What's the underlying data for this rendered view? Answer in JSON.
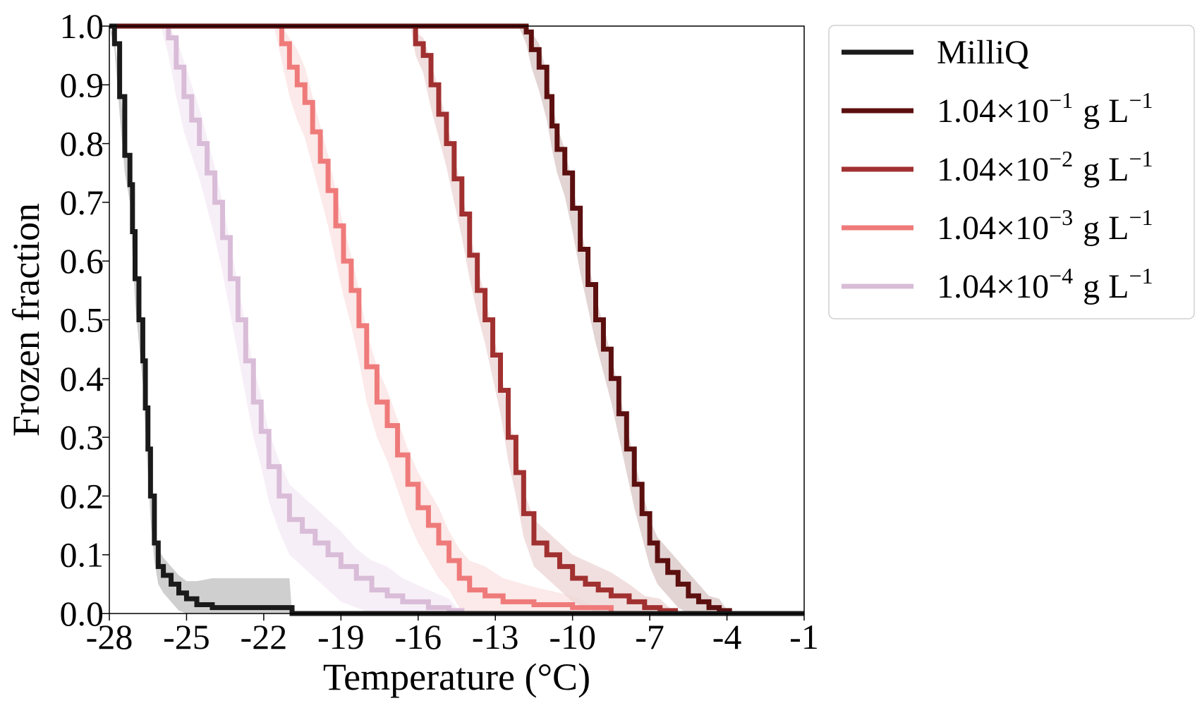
{
  "chart_data": {
    "type": "line",
    "xlabel": "Temperature (°C)",
    "ylabel": "Frozen fraction",
    "xlim": [
      -28,
      -1
    ],
    "ylim": [
      0.0,
      1.0
    ],
    "xticks": [
      "-28",
      "-25",
      "-22",
      "-19",
      "-16",
      "-13",
      "-10",
      "-7",
      "-4",
      "-1"
    ],
    "yticks": [
      "0.0",
      "0.1",
      "0.2",
      "0.3",
      "0.4",
      "0.5",
      "0.6",
      "0.7",
      "0.8",
      "0.9",
      "1.0"
    ],
    "grid": false,
    "legend_position": "outside-right-top",
    "series": [
      {
        "name": "MilliQ",
        "legend": {
          "prefix": "MilliQ",
          "exp": "",
          "unit": "",
          "unit_exp": ""
        },
        "color": "#1a1a1a",
        "band_color": "#bfbfbf",
        "points": [
          [
            -28,
            1.0
          ],
          [
            -27.8,
            0.97
          ],
          [
            -27.6,
            0.88
          ],
          [
            -27.4,
            0.78
          ],
          [
            -27.2,
            0.73
          ],
          [
            -27.1,
            0.65
          ],
          [
            -27.0,
            0.57
          ],
          [
            -26.85,
            0.5
          ],
          [
            -26.7,
            0.43
          ],
          [
            -26.6,
            0.35
          ],
          [
            -26.5,
            0.28
          ],
          [
            -26.4,
            0.2
          ],
          [
            -26.25,
            0.12
          ],
          [
            -26.1,
            0.08
          ],
          [
            -25.9,
            0.065
          ],
          [
            -25.6,
            0.05
          ],
          [
            -25.3,
            0.035
          ],
          [
            -25.0,
            0.025
          ],
          [
            -24.6,
            0.015
          ],
          [
            -24.0,
            0.01
          ],
          [
            -23.0,
            0.01
          ],
          [
            -21.0,
            0.01
          ],
          [
            -20.9,
            0.0
          ],
          [
            -1,
            0.0
          ]
        ],
        "band_halfwidth": [
          0,
          0.01,
          0.03,
          0.03,
          0.03,
          0.04,
          0.04,
          0.04,
          0.04,
          0.04,
          0.04,
          0.04,
          0.03,
          0.03,
          0.03,
          0.03,
          0.03,
          0.03,
          0.04,
          0.05,
          0.05,
          0.05,
          0,
          0
        ]
      },
      {
        "name": "1.04×10−1 g L−1",
        "legend": {
          "prefix": "1.04×10",
          "exp": "−1",
          "unit": "g L",
          "unit_exp": "−1"
        },
        "color": "#5c0f0f",
        "band_color": "#d9c6c6",
        "points": [
          [
            -28,
            1.0
          ],
          [
            -12.1,
            1.0
          ],
          [
            -11.8,
            0.99
          ],
          [
            -11.6,
            0.96
          ],
          [
            -11.3,
            0.93
          ],
          [
            -11.0,
            0.88
          ],
          [
            -10.8,
            0.83
          ],
          [
            -10.6,
            0.79
          ],
          [
            -10.3,
            0.75
          ],
          [
            -10.0,
            0.69
          ],
          [
            -9.7,
            0.62
          ],
          [
            -9.4,
            0.56
          ],
          [
            -9.1,
            0.5
          ],
          [
            -8.8,
            0.45
          ],
          [
            -8.5,
            0.4
          ],
          [
            -8.2,
            0.34
          ],
          [
            -7.9,
            0.28
          ],
          [
            -7.6,
            0.22
          ],
          [
            -7.3,
            0.17
          ],
          [
            -7.0,
            0.12
          ],
          [
            -6.7,
            0.09
          ],
          [
            -6.3,
            0.07
          ],
          [
            -5.9,
            0.05
          ],
          [
            -5.5,
            0.03
          ],
          [
            -5.1,
            0.02
          ],
          [
            -4.7,
            0.01
          ],
          [
            -4.3,
            0.005
          ],
          [
            -3.9,
            0.0
          ],
          [
            -1,
            0.0
          ]
        ],
        "band_halfwidth": [
          0,
          0,
          0.02,
          0.03,
          0.04,
          0.04,
          0.04,
          0.04,
          0.04,
          0.04,
          0.04,
          0.04,
          0.04,
          0.04,
          0.04,
          0.04,
          0.04,
          0.04,
          0.04,
          0.04,
          0.04,
          0.04,
          0.04,
          0.04,
          0.03,
          0.02,
          0.02,
          0,
          0
        ]
      },
      {
        "name": "1.04×10−2 g L−1",
        "legend": {
          "prefix": "1.04×10",
          "exp": "−2",
          "unit": "g L",
          "unit_exp": "−1"
        },
        "color": "#a13030",
        "band_color": "#ecd4d4",
        "points": [
          [
            -28,
            1.0
          ],
          [
            -16.3,
            1.0
          ],
          [
            -16.1,
            0.97
          ],
          [
            -15.8,
            0.95
          ],
          [
            -15.5,
            0.9
          ],
          [
            -15.2,
            0.85
          ],
          [
            -14.9,
            0.8
          ],
          [
            -14.6,
            0.74
          ],
          [
            -14.3,
            0.68
          ],
          [
            -14.0,
            0.61
          ],
          [
            -13.7,
            0.55
          ],
          [
            -13.4,
            0.5
          ],
          [
            -13.1,
            0.44
          ],
          [
            -12.8,
            0.38
          ],
          [
            -12.5,
            0.3
          ],
          [
            -12.2,
            0.24
          ],
          [
            -11.9,
            0.17
          ],
          [
            -11.5,
            0.12
          ],
          [
            -11.0,
            0.1
          ],
          [
            -10.5,
            0.08
          ],
          [
            -10.0,
            0.06
          ],
          [
            -9.5,
            0.05
          ],
          [
            -9.0,
            0.04
          ],
          [
            -8.5,
            0.03
          ],
          [
            -7.8,
            0.02
          ],
          [
            -7.2,
            0.01
          ],
          [
            -6.6,
            0.005
          ],
          [
            -6.0,
            0.0
          ],
          [
            -1,
            0.0
          ]
        ],
        "band_halfwidth": [
          0,
          0,
          0.02,
          0.03,
          0.04,
          0.04,
          0.04,
          0.04,
          0.04,
          0.04,
          0.04,
          0.04,
          0.04,
          0.04,
          0.04,
          0.04,
          0.04,
          0.04,
          0.04,
          0.04,
          0.04,
          0.04,
          0.04,
          0.04,
          0.03,
          0.02,
          0.02,
          0,
          0
        ]
      },
      {
        "name": "1.04×10−3 g L−1",
        "legend": {
          "prefix": "1.04×10",
          "exp": "−3",
          "unit": "g L",
          "unit_exp": "−1"
        },
        "color": "#ef7a7a",
        "band_color": "#fbe1e1",
        "points": [
          [
            -28,
            1.0
          ],
          [
            -21.6,
            1.0
          ],
          [
            -21.3,
            0.97
          ],
          [
            -21.0,
            0.93
          ],
          [
            -20.7,
            0.9
          ],
          [
            -20.4,
            0.87
          ],
          [
            -20.1,
            0.82
          ],
          [
            -19.8,
            0.77
          ],
          [
            -19.5,
            0.72
          ],
          [
            -19.2,
            0.66
          ],
          [
            -18.9,
            0.6
          ],
          [
            -18.6,
            0.55
          ],
          [
            -18.3,
            0.49
          ],
          [
            -18.0,
            0.42
          ],
          [
            -17.6,
            0.36
          ],
          [
            -17.2,
            0.32
          ],
          [
            -16.8,
            0.27
          ],
          [
            -16.4,
            0.22
          ],
          [
            -16.0,
            0.18
          ],
          [
            -15.6,
            0.15
          ],
          [
            -15.2,
            0.12
          ],
          [
            -14.8,
            0.09
          ],
          [
            -14.4,
            0.06
          ],
          [
            -14.0,
            0.04
          ],
          [
            -13.4,
            0.03
          ],
          [
            -12.7,
            0.02
          ],
          [
            -11.5,
            0.015
          ],
          [
            -10.0,
            0.01
          ],
          [
            -8.5,
            0.0
          ],
          [
            -1,
            0.0
          ]
        ],
        "band_halfwidth": [
          0,
          0,
          0.03,
          0.05,
          0.06,
          0.06,
          0.06,
          0.06,
          0.06,
          0.06,
          0.06,
          0.06,
          0.06,
          0.06,
          0.06,
          0.06,
          0.06,
          0.06,
          0.06,
          0.06,
          0.06,
          0.05,
          0.05,
          0.05,
          0.05,
          0.04,
          0.03,
          0.02,
          0,
          0
        ]
      },
      {
        "name": "1.04×10−4 g L−1",
        "legend": {
          "prefix": "1.04×10",
          "exp": "−4",
          "unit": "g L",
          "unit_exp": "−1"
        },
        "color": "#d9bcd8",
        "band_color": "#f4eaf4",
        "points": [
          [
            -28,
            1.0
          ],
          [
            -26.0,
            1.0
          ],
          [
            -25.7,
            0.98
          ],
          [
            -25.4,
            0.93
          ],
          [
            -25.1,
            0.88
          ],
          [
            -24.8,
            0.84
          ],
          [
            -24.5,
            0.8
          ],
          [
            -24.2,
            0.75
          ],
          [
            -23.9,
            0.7
          ],
          [
            -23.6,
            0.64
          ],
          [
            -23.3,
            0.57
          ],
          [
            -23.0,
            0.5
          ],
          [
            -22.7,
            0.43
          ],
          [
            -22.4,
            0.36
          ],
          [
            -22.1,
            0.31
          ],
          [
            -21.8,
            0.25
          ],
          [
            -21.4,
            0.2
          ],
          [
            -21.0,
            0.16
          ],
          [
            -20.5,
            0.14
          ],
          [
            -20.0,
            0.12
          ],
          [
            -19.5,
            0.1
          ],
          [
            -19.0,
            0.08
          ],
          [
            -18.4,
            0.06
          ],
          [
            -17.8,
            0.04
          ],
          [
            -17.2,
            0.03
          ],
          [
            -16.6,
            0.02
          ],
          [
            -15.6,
            0.01
          ],
          [
            -14.8,
            0.005
          ],
          [
            -14.3,
            0.0
          ],
          [
            -1,
            0.0
          ]
        ],
        "band_halfwidth": [
          0,
          0,
          0.03,
          0.05,
          0.06,
          0.06,
          0.06,
          0.06,
          0.06,
          0.06,
          0.06,
          0.06,
          0.06,
          0.06,
          0.06,
          0.06,
          0.06,
          0.06,
          0.06,
          0.06,
          0.06,
          0.06,
          0.05,
          0.05,
          0.05,
          0.04,
          0.03,
          0.02,
          0,
          0
        ]
      }
    ]
  }
}
